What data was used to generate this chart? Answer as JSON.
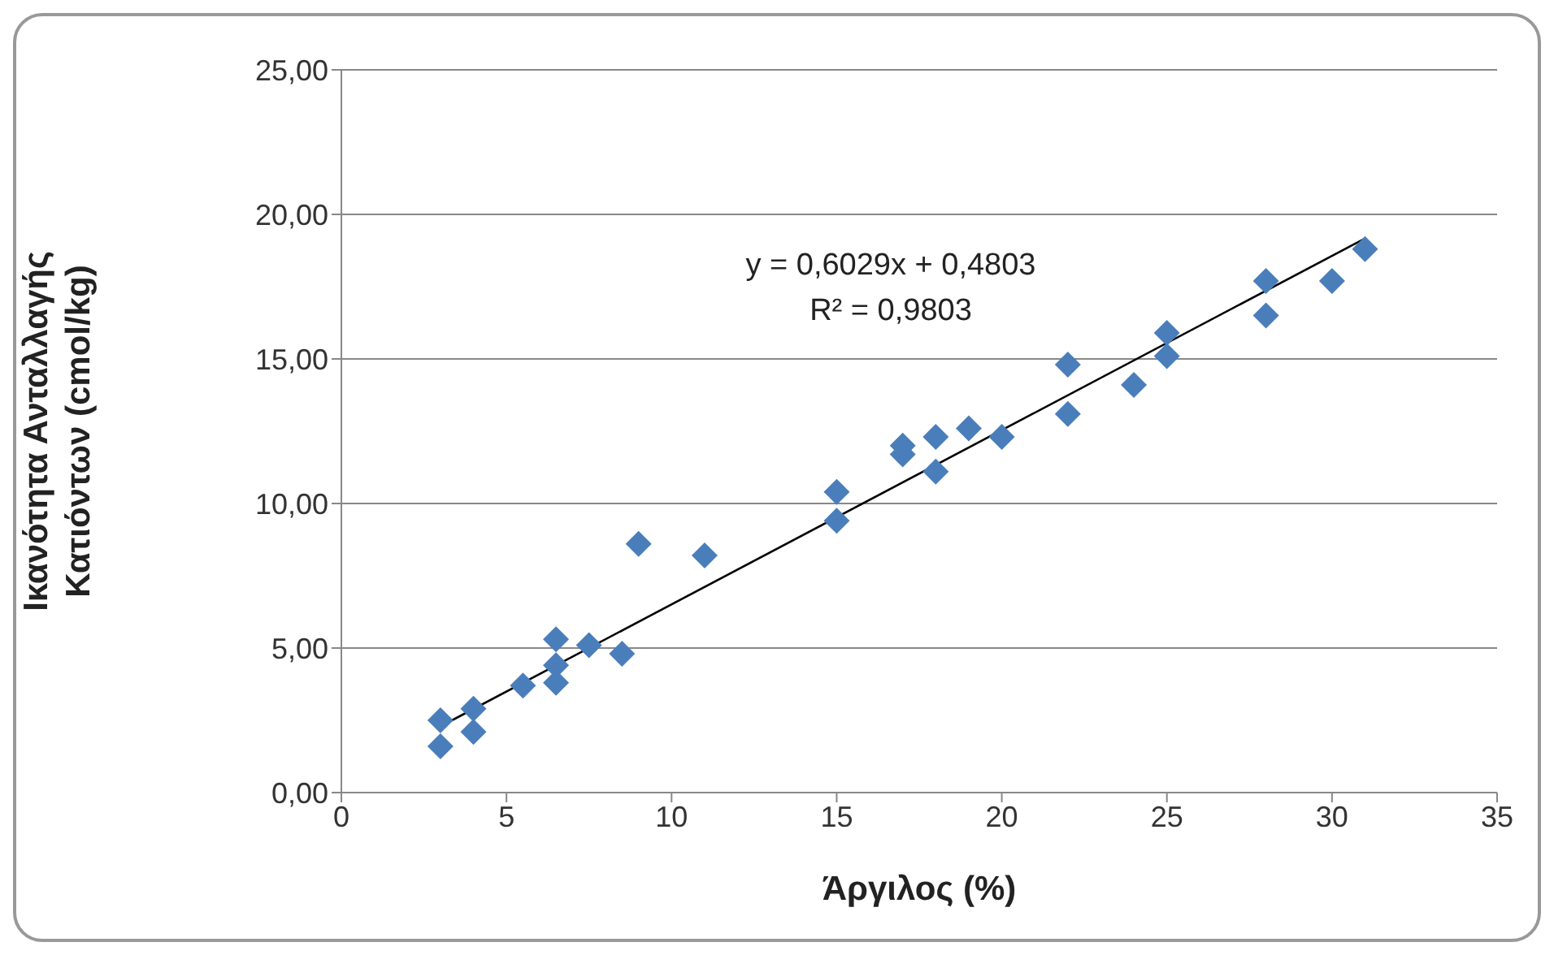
{
  "chart_data": {
    "type": "scatter",
    "xlabel": "Άργιλος (%)",
    "ylabel": "Ικανότητα Ανταλλαγής\nΚατιόντων (cmol/kg)",
    "xlim": [
      0,
      35
    ],
    "xticks": [
      0,
      5,
      10,
      15,
      20,
      25,
      30,
      35
    ],
    "ylim": [
      0,
      25
    ],
    "yticks": [
      {
        "value": 0,
        "label": "0,00"
      },
      {
        "value": 5,
        "label": "5,00"
      },
      {
        "value": 10,
        "label": "10,00"
      },
      {
        "value": 15,
        "label": "15,00"
      },
      {
        "value": 20,
        "label": "20,00"
      },
      {
        "value": 25,
        "label": "25,00"
      }
    ],
    "grid": "y",
    "marker": "diamond",
    "annotations": [
      "y = 0,6029x + 0,4803",
      "R² = 0,9803"
    ],
    "series": [
      {
        "color": "#4a7ebb",
        "x": [
          3,
          3,
          4,
          4,
          5.5,
          6.5,
          6.5,
          6.5,
          7.5,
          8.5,
          9,
          11,
          15,
          15,
          17,
          17,
          18,
          18,
          19,
          20,
          22,
          22,
          24,
          25,
          25,
          28,
          28,
          30,
          31
        ],
        "values": [
          2.5,
          1.6,
          2.9,
          2.1,
          3.7,
          5.3,
          4.4,
          3.8,
          5.1,
          4.8,
          8.6,
          8.2,
          10.4,
          9.4,
          12,
          11.7,
          12.3,
          11.1,
          12.6,
          12.3,
          14.8,
          13.1,
          14.1,
          15.9,
          15.1,
          17.7,
          16.5,
          17.7,
          18.8
        ]
      },
      {
        "type": "line",
        "color": "#000000",
        "marker": "none",
        "x": [
          3,
          31
        ],
        "values": [
          2.29,
          19.17
        ]
      }
    ]
  }
}
